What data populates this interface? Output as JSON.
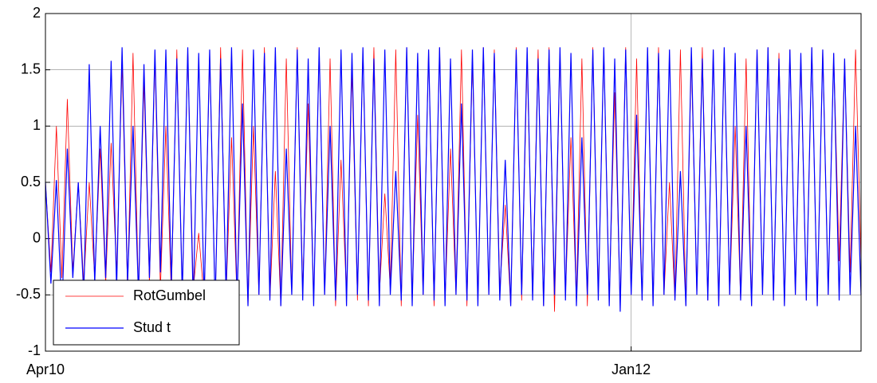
{
  "chart_data": {
    "type": "line",
    "categories": [
      "Apr10",
      null,
      null,
      null,
      null,
      null,
      null,
      null,
      null,
      null,
      null,
      null,
      null,
      null,
      null,
      null,
      null,
      null,
      null,
      null,
      null,
      null,
      null,
      null,
      null,
      null,
      null,
      null,
      null,
      null,
      null,
      null,
      null,
      null,
      null,
      null,
      null,
      null,
      null,
      null,
      null,
      null,
      null,
      null,
      null,
      null,
      null,
      null,
      null,
      null,
      null,
      null,
      null,
      null,
      null,
      null,
      null,
      null,
      null,
      null,
      null,
      null,
      null,
      null,
      null,
      null,
      null,
      null,
      null,
      null,
      null,
      null,
      null,
      null,
      null,
      null,
      null,
      null,
      null,
      null,
      null,
      null,
      null,
      null,
      null,
      null,
      null,
      null,
      null,
      null,
      null,
      null,
      null,
      null,
      null,
      null,
      null,
      null,
      null,
      null,
      null,
      null,
      null,
      null,
      null,
      null,
      null,
      "Jan12",
      null,
      null,
      null,
      null,
      null,
      null,
      null,
      null,
      null,
      null,
      null,
      null,
      null,
      null,
      null,
      null,
      null,
      null,
      null,
      null,
      null,
      null,
      null,
      null,
      null,
      null,
      null,
      null,
      null,
      null,
      null,
      null,
      null,
      null,
      null,
      null,
      null,
      null,
      null,
      null,
      null,
      null
    ],
    "series": [
      {
        "name": "RotGumbel",
        "color": "#ff0000",
        "values": [
          0.5,
          -0.3,
          1.0,
          -0.35,
          1.24,
          -0.3,
          0.5,
          -0.4,
          0.5,
          -0.35,
          0.8,
          -0.4,
          0.85,
          -0.3,
          1.55,
          -0.45,
          1.65,
          -0.5,
          1.4,
          -0.4,
          1.6,
          -0.45,
          1.0,
          -0.5,
          1.68,
          -0.5,
          1.68,
          -0.45,
          0.05,
          -0.55,
          1.65,
          -0.6,
          1.7,
          -0.5,
          0.9,
          -0.55,
          1.68,
          -0.6,
          1.0,
          -0.5,
          1.7,
          -0.55,
          0.6,
          -0.6,
          1.6,
          -0.5,
          1.7,
          -0.45,
          1.2,
          -0.55,
          1.68,
          -0.5,
          1.6,
          -0.6,
          0.7,
          -0.5,
          1.5,
          -0.55,
          1.68,
          -0.6,
          1.7,
          -0.5,
          0.4,
          -0.45,
          1.68,
          -0.6,
          1.7,
          -0.55,
          1.1,
          -0.5,
          1.68,
          -0.6,
          1.7,
          -0.55,
          0.8,
          -0.5,
          1.68,
          -0.6,
          1.6,
          -0.55,
          1.7,
          -0.5,
          1.68,
          -0.45,
          0.3,
          -0.6,
          1.7,
          -0.55,
          1.6,
          -0.5,
          1.68,
          -0.6,
          1.7,
          -0.65,
          1.65,
          -0.5,
          0.9,
          -0.55,
          1.6,
          -0.6,
          1.7,
          -0.5,
          1.68,
          -0.55,
          1.3,
          -0.6,
          1.7,
          -0.5,
          1.6,
          -0.55,
          1.68,
          -0.6,
          1.7,
          -0.5,
          0.5,
          -0.55,
          1.68,
          -0.6,
          1.6,
          -0.5,
          1.7,
          -0.55,
          1.68,
          -0.6,
          1.65,
          -0.5,
          1.0,
          -0.55,
          1.6,
          -0.6,
          1.68,
          -0.5,
          1.7,
          -0.55,
          1.65,
          -0.6,
          1.68,
          -0.5,
          1.6,
          -0.55,
          1.7,
          -0.6,
          1.68,
          -0.5,
          1.65,
          -0.2,
          1.6,
          -0.3,
          1.68,
          -0.2
        ]
      },
      {
        "name": "Stud t",
        "color": "#0000ff",
        "values": [
          0.5,
          -0.4,
          0.52,
          -0.65,
          0.8,
          -0.35,
          0.5,
          -0.5,
          1.55,
          -0.4,
          1.0,
          -0.35,
          1.58,
          -0.45,
          1.7,
          -0.4,
          1.0,
          -0.5,
          1.55,
          -0.35,
          1.68,
          -0.3,
          1.68,
          -0.4,
          1.6,
          -0.5,
          1.7,
          -0.6,
          1.65,
          -0.55,
          1.68,
          -0.6,
          1.6,
          -0.5,
          1.7,
          -0.55,
          1.2,
          -0.6,
          1.68,
          -0.5,
          1.65,
          -0.55,
          1.7,
          -0.6,
          0.8,
          -0.5,
          1.68,
          -0.55,
          1.6,
          -0.6,
          1.7,
          -0.5,
          1.0,
          -0.55,
          1.68,
          -0.6,
          1.65,
          -0.5,
          1.7,
          -0.55,
          1.6,
          -0.6,
          1.68,
          -0.5,
          0.6,
          -0.55,
          1.7,
          -0.6,
          1.65,
          -0.5,
          1.68,
          -0.55,
          1.7,
          -0.6,
          1.6,
          -0.5,
          1.2,
          -0.55,
          1.68,
          -0.6,
          1.7,
          -0.5,
          1.65,
          -0.55,
          0.7,
          -0.6,
          1.68,
          -0.5,
          1.7,
          -0.55,
          1.6,
          -0.6,
          1.68,
          -0.5,
          1.7,
          -0.55,
          1.65,
          -0.6,
          0.9,
          -0.5,
          1.68,
          -0.55,
          1.7,
          -0.6,
          1.6,
          -0.65,
          1.68,
          -0.5,
          1.1,
          -0.55,
          1.7,
          -0.6,
          1.65,
          -0.5,
          1.68,
          -0.55,
          0.6,
          -0.6,
          1.7,
          -0.5,
          1.6,
          -0.55,
          1.68,
          -0.6,
          1.7,
          -0.5,
          1.65,
          -0.55,
          1.0,
          -0.6,
          1.68,
          -0.5,
          1.7,
          -0.55,
          1.6,
          -0.6,
          1.68,
          -0.5,
          1.65,
          -0.55,
          1.7,
          -0.6,
          1.68,
          -0.5,
          1.65,
          -0.55,
          1.6,
          -0.5,
          1.0,
          -0.5
        ]
      }
    ],
    "ylim": [
      -1,
      2
    ],
    "yticks": [
      -1,
      -0.5,
      0,
      0.5,
      1,
      1.5,
      2
    ],
    "grid": true,
    "legend": "lower-left"
  }
}
